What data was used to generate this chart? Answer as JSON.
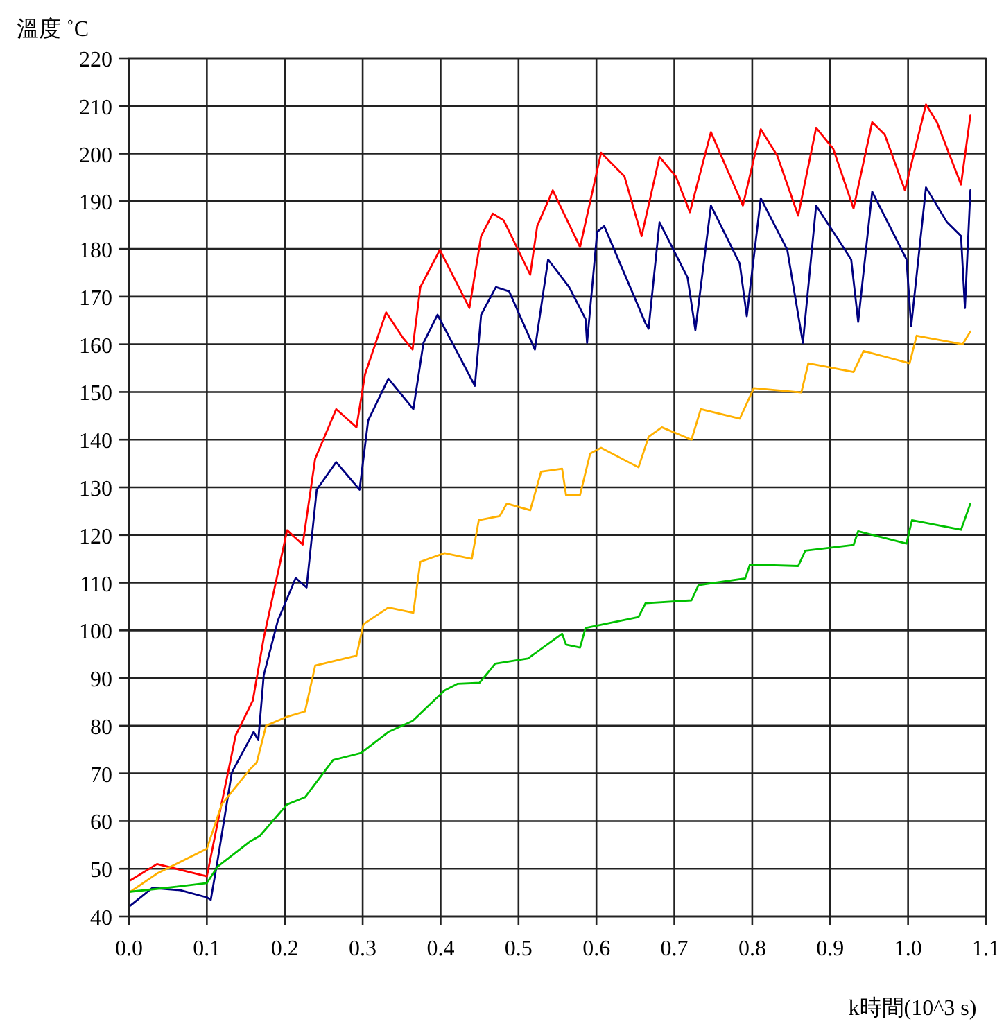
{
  "chart_data": {
    "type": "line",
    "xlabel": "k時間(10^3 s)",
    "ylabel": "溫度 ˚C",
    "xlim": [
      0,
      1.1
    ],
    "xticks": [
      {
        "value": 0,
        "label": "0.0"
      },
      0.1,
      0.2,
      0.3,
      0.4,
      0.5,
      0.6,
      0.7,
      0.8,
      0.9,
      {
        "value": 1,
        "label": "1.0"
      },
      1.1
    ],
    "ylim": [
      40,
      220
    ],
    "yticks": [
      40,
      50,
      60,
      70,
      80,
      90,
      100,
      110,
      120,
      130,
      140,
      150,
      160,
      170,
      180,
      190,
      200,
      210,
      220
    ],
    "grid": true,
    "series": [
      {
        "color": "#ff0000",
        "x": [
          0.002,
          0.036,
          0.1,
          0.114,
          0.137,
          0.159,
          0.173,
          0.203,
          0.223,
          0.239,
          0.266,
          0.292,
          0.303,
          0.33,
          0.351,
          0.364,
          0.374,
          0.399,
          0.437,
          0.452,
          0.467,
          0.481,
          0.515,
          0.524,
          0.544,
          0.579,
          0.606,
          0.636,
          0.658,
          0.681,
          0.702,
          0.72,
          0.747,
          0.788,
          0.811,
          0.832,
          0.859,
          0.882,
          0.904,
          0.93,
          0.954,
          0.97,
          0.996,
          1.023,
          1.037,
          1.068,
          1.08
        ],
        "values": [
          47.6,
          51,
          48.4,
          59.8,
          78,
          85.3,
          98.4,
          121,
          118,
          136,
          146.4,
          142.6,
          153.7,
          166.7,
          161.5,
          158.9,
          172,
          179.8,
          167.6,
          182.7,
          187.4,
          186,
          174.6,
          184.8,
          192.3,
          180.4,
          200.2,
          195.2,
          182.7,
          199.3,
          195.2,
          187.7,
          204.5,
          189.1,
          205.1,
          199.6,
          187,
          205.4,
          201,
          188.5,
          206.6,
          204,
          192.3,
          210.3,
          206.6,
          193.5,
          208
        ]
      },
      {
        "color": "#000080",
        "x": [
          0.002,
          0.03,
          0.066,
          0.1,
          0.105,
          0.114,
          0.132,
          0.16,
          0.166,
          0.173,
          0.191,
          0.214,
          0.228,
          0.241,
          0.266,
          0.296,
          0.307,
          0.333,
          0.365,
          0.378,
          0.396,
          0.444,
          0.452,
          0.471,
          0.488,
          0.521,
          0.538,
          0.565,
          0.586,
          0.588,
          0.601,
          0.61,
          0.663,
          0.667,
          0.681,
          0.717,
          0.727,
          0.747,
          0.784,
          0.793,
          0.811,
          0.845,
          0.865,
          0.882,
          0.927,
          0.936,
          0.954,
          0.998,
          1.004,
          1.023,
          1.05,
          1.068,
          1.073,
          1.08
        ],
        "values": [
          42.3,
          46,
          45.5,
          44,
          43.5,
          52,
          70.2,
          78.7,
          77,
          90.6,
          102,
          111,
          109,
          129.5,
          135.3,
          129.5,
          144,
          152.8,
          146.4,
          160.3,
          166.2,
          151.3,
          166.2,
          172,
          171.1,
          158.9,
          177.8,
          172,
          165.3,
          160.3,
          183.6,
          184.8,
          164.4,
          163.3,
          185.6,
          174,
          163,
          189.1,
          176.9,
          165.9,
          190.6,
          179.8,
          160.3,
          189.1,
          177.8,
          164.7,
          192,
          177.8,
          163.8,
          192.9,
          185.6,
          182.7,
          167.6,
          192.3
        ]
      },
      {
        "color": "#ffb000",
        "x": [
          0.002,
          0.036,
          0.1,
          0.119,
          0.155,
          0.164,
          0.176,
          0.203,
          0.226,
          0.239,
          0.292,
          0.301,
          0.333,
          0.365,
          0.374,
          0.405,
          0.44,
          0.449,
          0.476,
          0.485,
          0.515,
          0.529,
          0.556,
          0.561,
          0.579,
          0.592,
          0.606,
          0.654,
          0.667,
          0.684,
          0.722,
          0.734,
          0.784,
          0.802,
          0.863,
          0.872,
          0.93,
          0.943,
          1.002,
          1.011,
          1.07,
          1.08
        ],
        "values": [
          45.2,
          49,
          54.2,
          63.5,
          70.8,
          72.3,
          80,
          81.9,
          83,
          92.6,
          94.7,
          101.3,
          104.8,
          103.7,
          114.4,
          116.2,
          115,
          123.1,
          124,
          126.6,
          125.2,
          133.3,
          133.9,
          128.4,
          128.4,
          137.1,
          138.3,
          134.2,
          140.6,
          142.6,
          140,
          146.4,
          144.4,
          150.8,
          149.9,
          156,
          154.2,
          158.6,
          156,
          161.8,
          160,
          162.7
        ]
      },
      {
        "color": "#00c000",
        "x": [
          0.002,
          0.048,
          0.1,
          0.114,
          0.155,
          0.168,
          0.203,
          0.226,
          0.262,
          0.298,
          0.333,
          0.364,
          0.405,
          0.422,
          0.45,
          0.46,
          0.47,
          0.512,
          0.556,
          0.561,
          0.579,
          0.586,
          0.654,
          0.663,
          0.722,
          0.731,
          0.791,
          0.797,
          0.859,
          0.868,
          0.93,
          0.936,
          0.998,
          1.005,
          1.068,
          1.08
        ],
        "values": [
          45.2,
          46,
          47,
          50.5,
          55.7,
          56.9,
          63.5,
          65,
          72.8,
          74.3,
          78.7,
          81,
          87.4,
          88.8,
          89,
          91,
          93,
          94.1,
          99.3,
          97,
          96.4,
          100.5,
          102.8,
          105.7,
          106.3,
          109.5,
          110.9,
          113.8,
          113.5,
          116.7,
          117.9,
          120.8,
          118.2,
          123.1,
          121.1,
          126.6
        ]
      }
    ]
  }
}
